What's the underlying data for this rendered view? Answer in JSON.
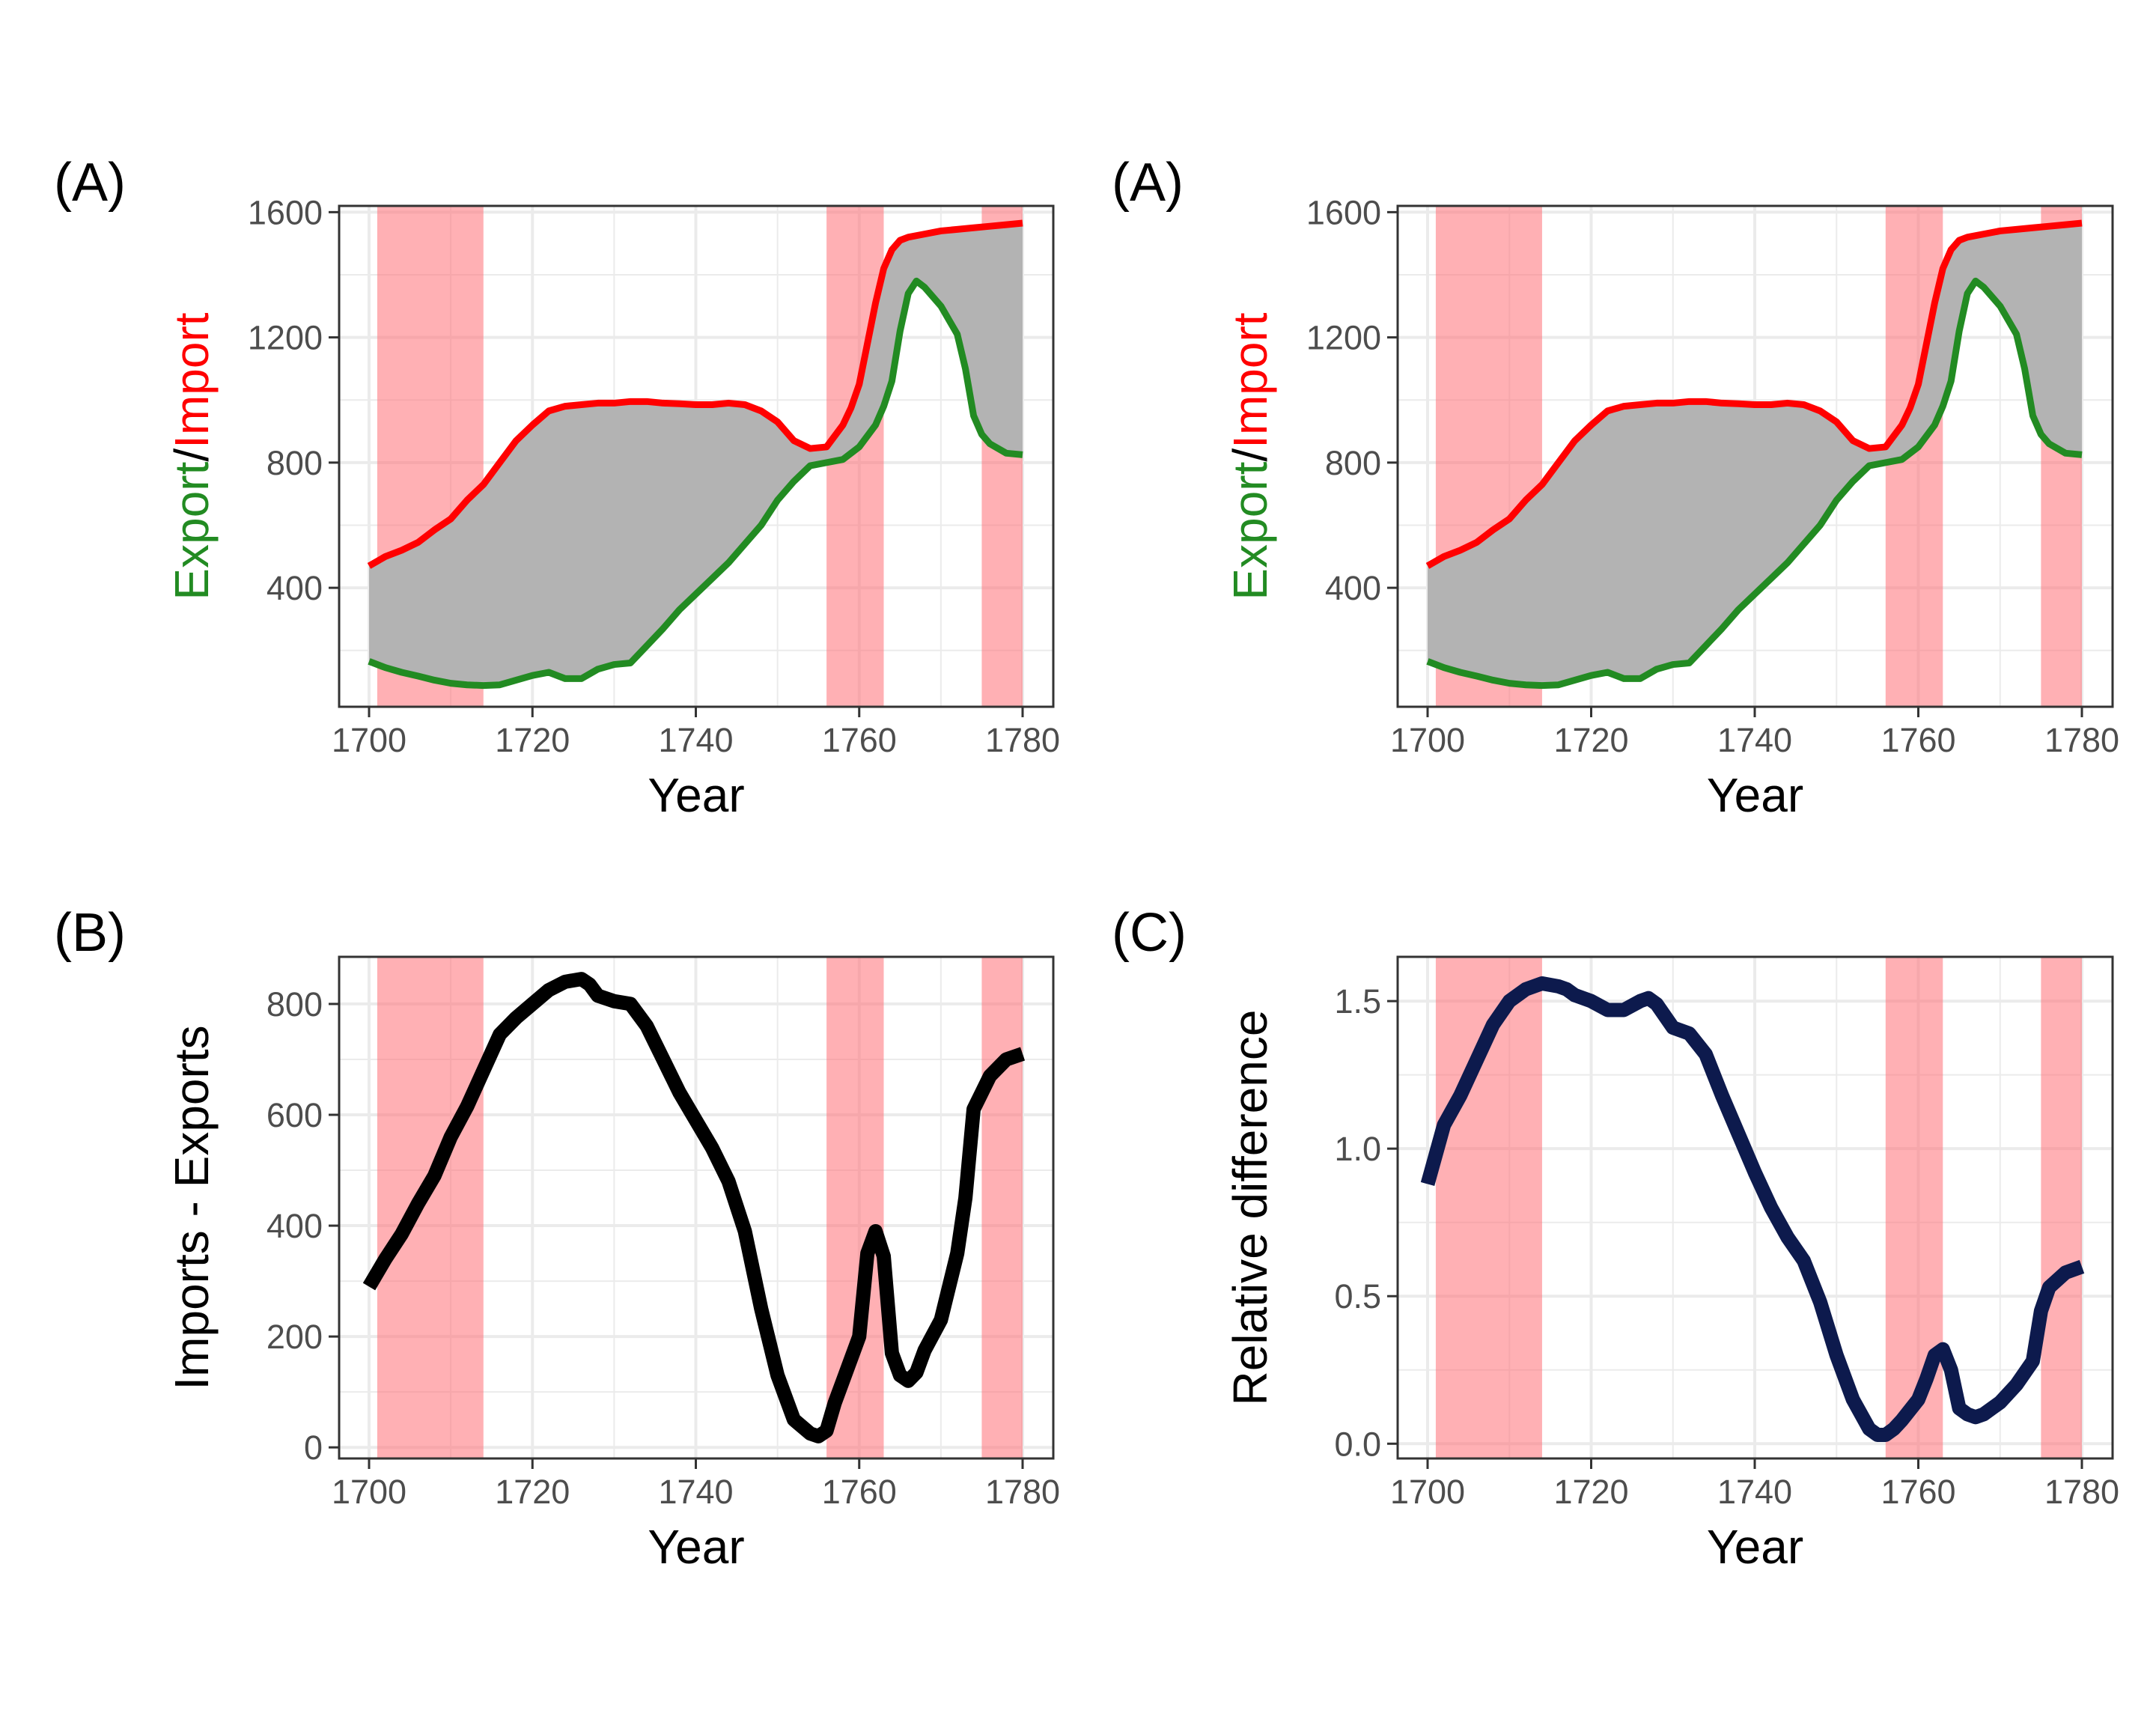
{
  "figure": {
    "shade_color": "#ff6f77",
    "area_color": "#b3b3b3",
    "import_color": "#ff0000",
    "export_color": "#228b22",
    "diff_color": "#000000",
    "reldiff_color": "#0d1a4d"
  },
  "chart_data": [
    {
      "type": "area",
      "panel_label": "(A)",
      "xlabel": "Year",
      "ylabel_parts": [
        "Export",
        "/",
        "Import"
      ],
      "xlim": [
        1700,
        1780
      ],
      "ylim": [
        20,
        1620
      ],
      "xticks": [
        1700,
        1720,
        1740,
        1760,
        1780
      ],
      "yticks": [
        400,
        800,
        1200,
        1600
      ],
      "shaded_periods": [
        [
          1701,
          1714
        ],
        [
          1756,
          1763
        ],
        [
          1775,
          1780
        ]
      ],
      "series": [
        {
          "name": "Import",
          "x": [
            1700,
            1702,
            1704,
            1706,
            1708,
            1710,
            1712,
            1714,
            1716,
            1718,
            1720,
            1722,
            1724,
            1726,
            1728,
            1730,
            1732,
            1734,
            1736,
            1738,
            1740,
            1742,
            1744,
            1746,
            1748,
            1750,
            1752,
            1754,
            1756,
            1758,
            1759,
            1760,
            1761,
            1762,
            1763,
            1764,
            1765,
            1766,
            1768,
            1770,
            1772,
            1774,
            1776,
            1778,
            1780
          ],
          "y": [
            470,
            500,
            520,
            545,
            585,
            620,
            680,
            730,
            800,
            870,
            920,
            965,
            980,
            985,
            990,
            990,
            995,
            995,
            990,
            988,
            985,
            985,
            990,
            985,
            965,
            930,
            870,
            845,
            850,
            920,
            975,
            1050,
            1180,
            1310,
            1420,
            1480,
            1510,
            1520,
            1530,
            1540,
            1545,
            1550,
            1555,
            1560,
            1565
          ]
        },
        {
          "name": "Export",
          "x": [
            1700,
            1702,
            1704,
            1706,
            1708,
            1710,
            1712,
            1714,
            1716,
            1718,
            1720,
            1722,
            1724,
            1726,
            1728,
            1730,
            1732,
            1734,
            1736,
            1738,
            1740,
            1742,
            1744,
            1746,
            1748,
            1750,
            1752,
            1754,
            1756,
            1758,
            1760,
            1762,
            1763,
            1764,
            1765,
            1766,
            1767,
            1768,
            1770,
            1772,
            1773,
            1774,
            1775,
            1776,
            1778,
            1780
          ],
          "y": [
            165,
            145,
            130,
            118,
            105,
            95,
            90,
            88,
            90,
            105,
            120,
            130,
            110,
            110,
            140,
            155,
            160,
            215,
            270,
            330,
            380,
            430,
            480,
            540,
            600,
            680,
            740,
            790,
            800,
            810,
            850,
            920,
            980,
            1060,
            1220,
            1340,
            1380,
            1360,
            1300,
            1210,
            1100,
            950,
            890,
            860,
            830,
            825
          ]
        }
      ]
    },
    {
      "type": "area",
      "panel_label": "(A)",
      "xlabel": "Year",
      "ylabel_parts": [
        "Export",
        "/",
        "Import"
      ],
      "xlim": [
        1700,
        1780
      ],
      "ylim": [
        20,
        1620
      ],
      "xticks": [
        1700,
        1720,
        1740,
        1760,
        1780
      ],
      "yticks": [
        400,
        800,
        1200,
        1600
      ],
      "shaded_periods": [
        [
          1701,
          1714
        ],
        [
          1756,
          1763
        ],
        [
          1775,
          1780
        ]
      ],
      "series": [
        {
          "name": "Import",
          "x": [
            1700,
            1702,
            1704,
            1706,
            1708,
            1710,
            1712,
            1714,
            1716,
            1718,
            1720,
            1722,
            1724,
            1726,
            1728,
            1730,
            1732,
            1734,
            1736,
            1738,
            1740,
            1742,
            1744,
            1746,
            1748,
            1750,
            1752,
            1754,
            1756,
            1758,
            1759,
            1760,
            1761,
            1762,
            1763,
            1764,
            1765,
            1766,
            1768,
            1770,
            1772,
            1774,
            1776,
            1778,
            1780
          ],
          "y": [
            470,
            500,
            520,
            545,
            585,
            620,
            680,
            730,
            800,
            870,
            920,
            965,
            980,
            985,
            990,
            990,
            995,
            995,
            990,
            988,
            985,
            985,
            990,
            985,
            965,
            930,
            870,
            845,
            850,
            920,
            975,
            1050,
            1180,
            1310,
            1420,
            1480,
            1510,
            1520,
            1530,
            1540,
            1545,
            1550,
            1555,
            1560,
            1565
          ]
        },
        {
          "name": "Export",
          "x": [
            1700,
            1702,
            1704,
            1706,
            1708,
            1710,
            1712,
            1714,
            1716,
            1718,
            1720,
            1722,
            1724,
            1726,
            1728,
            1730,
            1732,
            1734,
            1736,
            1738,
            1740,
            1742,
            1744,
            1746,
            1748,
            1750,
            1752,
            1754,
            1756,
            1758,
            1760,
            1762,
            1763,
            1764,
            1765,
            1766,
            1767,
            1768,
            1770,
            1772,
            1773,
            1774,
            1775,
            1776,
            1778,
            1780
          ],
          "y": [
            165,
            145,
            130,
            118,
            105,
            95,
            90,
            88,
            90,
            105,
            120,
            130,
            110,
            110,
            140,
            155,
            160,
            215,
            270,
            330,
            380,
            430,
            480,
            540,
            600,
            680,
            740,
            790,
            800,
            810,
            850,
            920,
            980,
            1060,
            1220,
            1340,
            1380,
            1360,
            1300,
            1210,
            1100,
            950,
            890,
            860,
            830,
            825
          ]
        }
      ]
    },
    {
      "type": "line",
      "panel_label": "(B)",
      "xlabel": "Year",
      "ylabel": "Imports - Exports",
      "xlim": [
        1700,
        1780
      ],
      "ylim": [
        -20,
        885
      ],
      "xticks": [
        1700,
        1720,
        1740,
        1760,
        1780
      ],
      "yticks": [
        0,
        200,
        400,
        600,
        800
      ],
      "shaded_periods": [
        [
          1701,
          1714
        ],
        [
          1756,
          1763
        ],
        [
          1775,
          1780
        ]
      ],
      "series": [
        {
          "x": [
            1700,
            1702,
            1704,
            1706,
            1708,
            1710,
            1712,
            1714,
            1716,
            1718,
            1720,
            1722,
            1724,
            1726,
            1727,
            1728,
            1730,
            1732,
            1734,
            1736,
            1738,
            1740,
            1742,
            1744,
            1746,
            1748,
            1750,
            1752,
            1754,
            1755,
            1756,
            1757,
            1758,
            1760,
            1761,
            1762,
            1763,
            1764,
            1765,
            1766,
            1767,
            1768,
            1770,
            1772,
            1773,
            1774,
            1775,
            1776,
            1778,
            1780
          ],
          "y": [
            290,
            340,
            385,
            440,
            490,
            560,
            615,
            680,
            745,
            775,
            800,
            825,
            840,
            845,
            835,
            815,
            805,
            800,
            760,
            700,
            640,
            590,
            540,
            480,
            390,
            250,
            130,
            50,
            25,
            20,
            30,
            80,
            120,
            200,
            350,
            390,
            345,
            170,
            130,
            120,
            135,
            175,
            230,
            350,
            450,
            610,
            640,
            670,
            700,
            710
          ]
        }
      ]
    },
    {
      "type": "line",
      "panel_label": "(C)",
      "xlabel": "Year",
      "ylabel": "Relative difference",
      "xlim": [
        1700,
        1780
      ],
      "ylim": [
        -0.05,
        1.65
      ],
      "xticks": [
        1700,
        1720,
        1740,
        1760,
        1780
      ],
      "yticks": [
        0.0,
        0.5,
        1.0,
        1.5
      ],
      "ytick_labels": [
        "0.0",
        "0.5",
        "1.0",
        "1.5"
      ],
      "shaded_periods": [
        [
          1701,
          1714
        ],
        [
          1756,
          1763
        ],
        [
          1775,
          1780
        ]
      ],
      "series": [
        {
          "x": [
            1700,
            1702,
            1704,
            1706,
            1708,
            1710,
            1712,
            1714,
            1716,
            1717,
            1718,
            1720,
            1722,
            1724,
            1726,
            1727,
            1728,
            1730,
            1732,
            1734,
            1736,
            1738,
            1740,
            1742,
            1744,
            1746,
            1748,
            1750,
            1752,
            1754,
            1755,
            1756,
            1757,
            1758,
            1760,
            1761,
            1762,
            1763,
            1764,
            1765,
            1766,
            1767,
            1768,
            1770,
            1772,
            1774,
            1775,
            1776,
            1778,
            1780
          ],
          "y": [
            0.88,
            1.08,
            1.18,
            1.3,
            1.42,
            1.5,
            1.54,
            1.56,
            1.55,
            1.54,
            1.52,
            1.5,
            1.47,
            1.47,
            1.5,
            1.51,
            1.49,
            1.41,
            1.39,
            1.32,
            1.18,
            1.05,
            0.92,
            0.8,
            0.7,
            0.62,
            0.48,
            0.3,
            0.15,
            0.05,
            0.03,
            0.03,
            0.05,
            0.08,
            0.15,
            0.22,
            0.3,
            0.32,
            0.25,
            0.12,
            0.1,
            0.09,
            0.1,
            0.14,
            0.2,
            0.28,
            0.45,
            0.53,
            0.58,
            0.6
          ]
        }
      ]
    }
  ]
}
